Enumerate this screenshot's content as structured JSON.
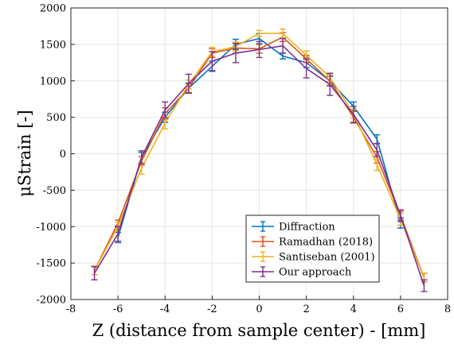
{
  "chart_data": {
    "type": "line",
    "title": "",
    "xlabel": "Z (distance from sample center) - [mm]",
    "ylabel": "μStrain [-]",
    "xlim": [
      -8,
      8
    ],
    "ylim": [
      -2000,
      2000
    ],
    "xticks": [
      -8,
      -6,
      -4,
      -2,
      0,
      2,
      4,
      6,
      8
    ],
    "yticks": [
      -2000,
      -1500,
      -1000,
      -500,
      0,
      500,
      1000,
      1500,
      2000
    ],
    "grid": true,
    "legend_position": "bottom-right",
    "series": [
      {
        "name": "Diffraction",
        "color": "#0072BD",
        "x": [
          -6,
          -5,
          -4,
          -3,
          -2,
          -1,
          0,
          1,
          2,
          3,
          4,
          5,
          6
        ],
        "y": [
          -1150,
          -50,
          500,
          900,
          1200,
          1500,
          1580,
          1340,
          1250,
          1000,
          650,
          200,
          -950
        ],
        "err": [
          70,
          70,
          70,
          70,
          70,
          70,
          70,
          40,
          70,
          70,
          60,
          60,
          70
        ]
      },
      {
        "name": "Ramadhan (2018)",
        "color": "#D95319",
        "x": [
          -7,
          -6,
          -5,
          -4,
          -3,
          -2,
          -1,
          0,
          1,
          2,
          3,
          4,
          5,
          6,
          7
        ],
        "y": [
          -1600,
          -950,
          -100,
          550,
          900,
          1380,
          1450,
          1440,
          1600,
          1300,
          1000,
          500,
          -50,
          -850,
          -1700
        ],
        "err": [
          60,
          40,
          60,
          80,
          60,
          60,
          70,
          60,
          60,
          50,
          60,
          80,
          80,
          60,
          60
        ]
      },
      {
        "name": "Santiseban (2001)",
        "color": "#EDB120",
        "x": [
          -7,
          -6,
          -5,
          -4,
          -3,
          -2,
          -1,
          0,
          1,
          2,
          3,
          4,
          5,
          6,
          7
        ],
        "y": [
          -1600,
          -1000,
          -200,
          420,
          950,
          1400,
          1470,
          1650,
          1650,
          1350,
          1050,
          550,
          -150,
          -900,
          -1700
        ],
        "err": [
          60,
          60,
          80,
          80,
          60,
          60,
          60,
          40,
          60,
          60,
          60,
          60,
          80,
          80,
          60
        ]
      },
      {
        "name": "Our approach",
        "color": "#7E2F8E",
        "x": [
          -7,
          -6,
          -5,
          -4,
          -3,
          -2,
          -1,
          0,
          1,
          2,
          3,
          4,
          5,
          6,
          7
        ],
        "y": [
          -1640,
          -1100,
          -50,
          600,
          960,
          1270,
          1380,
          1430,
          1480,
          1170,
          950,
          540,
          50,
          -850,
          -1810
        ],
        "err": [
          90,
          100,
          90,
          110,
          130,
          130,
          130,
          110,
          100,
          130,
          150,
          110,
          90,
          80,
          80
        ]
      }
    ]
  }
}
